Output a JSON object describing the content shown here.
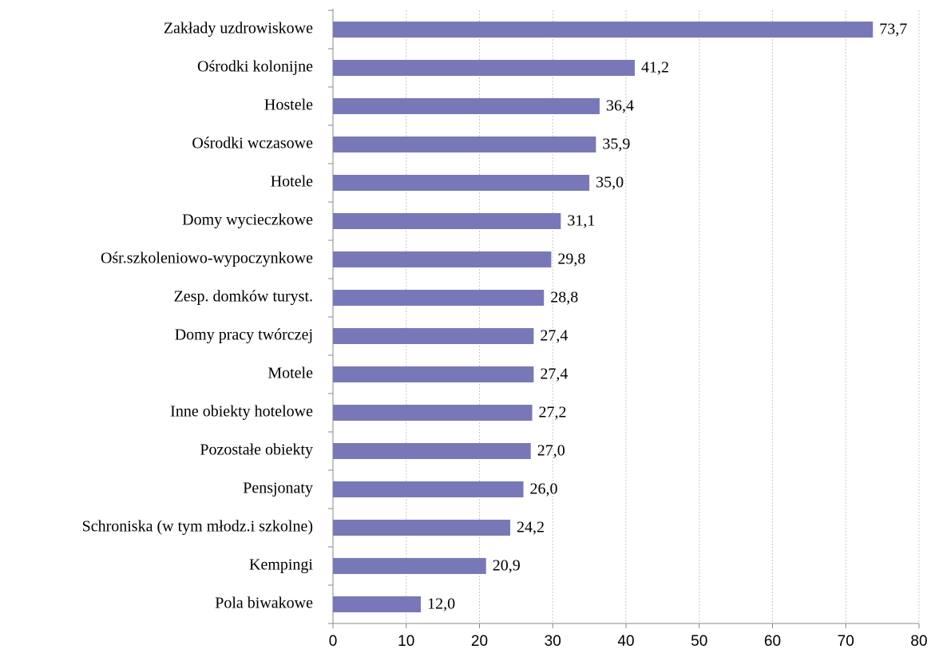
{
  "chart_data": {
    "type": "bar",
    "orientation": "horizontal",
    "categories": [
      "Zakłady uzdrowiskowe",
      "Ośrodki kolonijne",
      "Hostele",
      "Ośrodki wczasowe",
      "Hotele",
      "Domy wycieczkowe",
      "Ośr.szkoleniowo-wypoczynkowe",
      "Zesp. domków turyst.",
      "Domy pracy twórczej",
      "Motele",
      "Inne obiekty hotelowe",
      "Pozostałe obiekty",
      "Pensjonaty",
      "Schroniska (w tym młodz.i szkolne)",
      "Kempingi",
      "Pola biwakowe"
    ],
    "values": [
      73.7,
      41.2,
      36.4,
      35.9,
      35.0,
      31.1,
      29.8,
      28.8,
      27.4,
      27.4,
      27.2,
      27.0,
      26.0,
      24.2,
      20.9,
      12.0
    ],
    "value_labels": [
      "73,7",
      "41,2",
      "36,4",
      "35,9",
      "35,0",
      "31,1",
      "29,8",
      "28,8",
      "27,4",
      "27,4",
      "27,2",
      "27,0",
      "26,0",
      "24,2",
      "20,9",
      "12,0"
    ],
    "color": "#7878b9",
    "xlim": [
      0,
      80
    ],
    "xticks": [
      0,
      10,
      20,
      30,
      40,
      50,
      60,
      70,
      80
    ],
    "grid": true
  }
}
